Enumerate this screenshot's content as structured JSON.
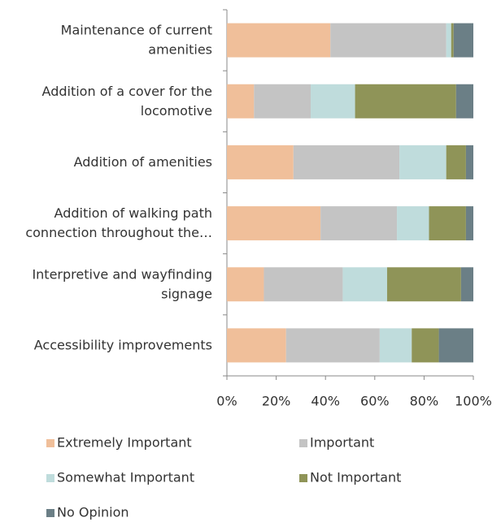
{
  "chart_data": {
    "type": "stacked_bar_horizontal",
    "categories": [
      "Maintenance of current\namenities",
      "Addition of a cover for the\nlocomotive",
      "Addition of amenities",
      "Addition of walking path\nconnection throughout the…",
      "Interpretive and wayfinding\nsignage",
      "Accessibility improvements"
    ],
    "series": [
      {
        "name": "Extremely Important",
        "color": "#f0bf9a",
        "values": [
          42,
          11,
          27,
          38,
          15,
          24
        ]
      },
      {
        "name": "Important",
        "color": "#c4c4c4",
        "values": [
          47,
          23,
          43,
          31,
          32,
          38
        ]
      },
      {
        "name": "Somewhat Important",
        "color": "#bfdcdc",
        "values": [
          2,
          18,
          19,
          13,
          18,
          13
        ]
      },
      {
        "name": "Not Important",
        "color": "#8f9458",
        "values": [
          1,
          41,
          8,
          15,
          30,
          11
        ]
      },
      {
        "name": "No Opinion",
        "color": "#6b7f86",
        "values": [
          8,
          7,
          3,
          3,
          5,
          14
        ]
      }
    ],
    "xlim": [
      0,
      100
    ],
    "xticks": [
      {
        "value": 0,
        "label": "0%"
      },
      {
        "value": 20,
        "label": "20%"
      },
      {
        "value": 40,
        "label": "40%"
      },
      {
        "value": 60,
        "label": "60%"
      },
      {
        "value": 80,
        "label": "80%"
      },
      {
        "value": 100,
        "label": "100%"
      }
    ],
    "legend": "bottom"
  }
}
